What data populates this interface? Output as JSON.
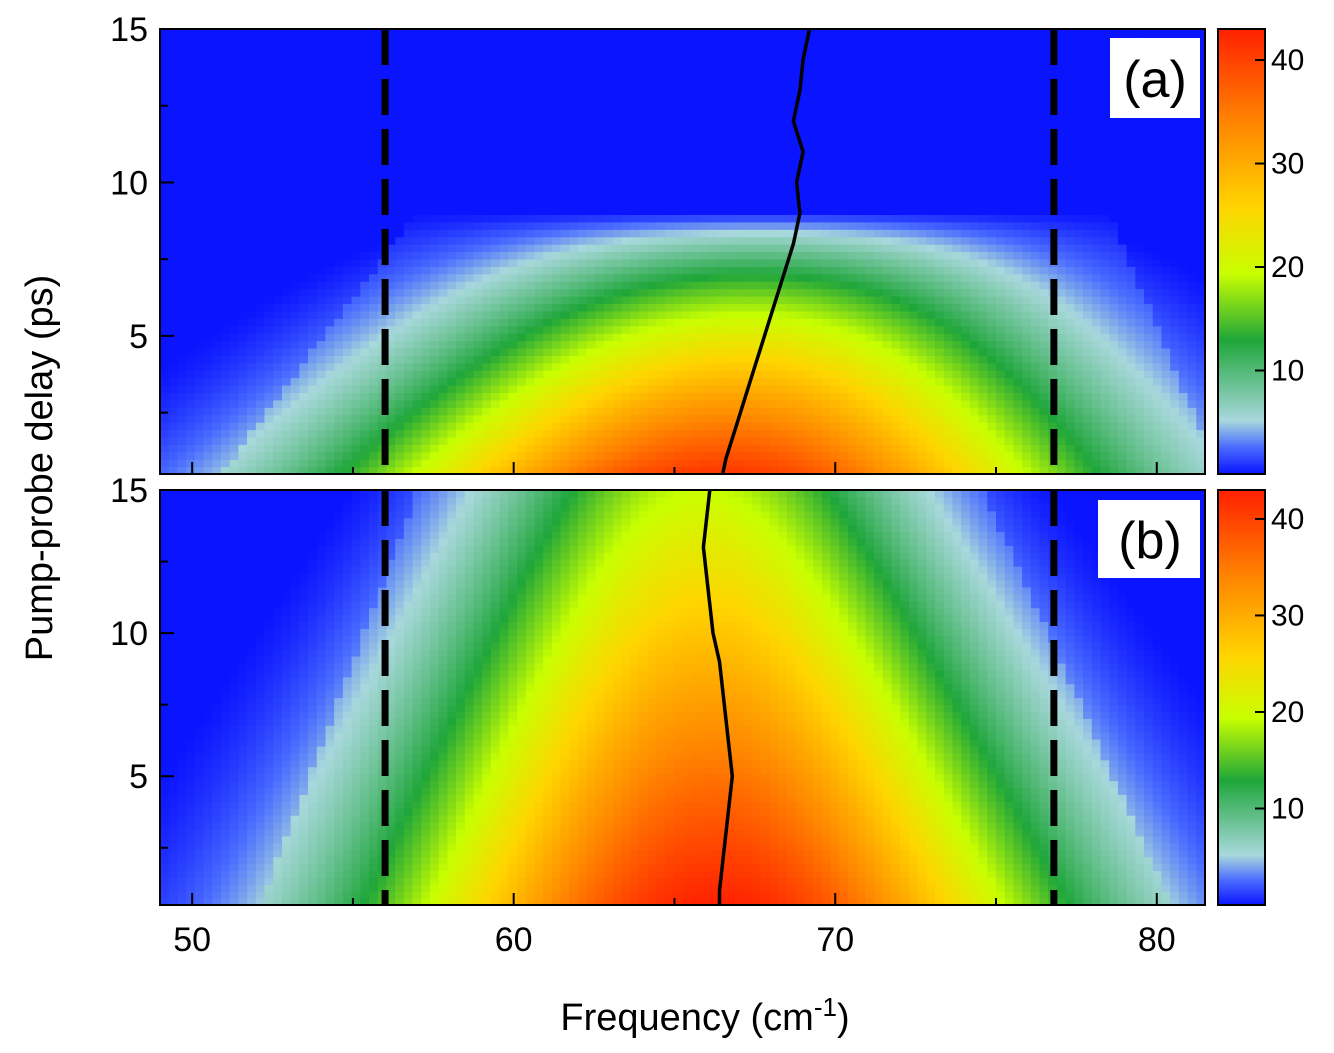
{
  "chart_data": [
    {
      "panel": "(a)",
      "type": "heatmap",
      "xlabel": "Frequency (cm-1)",
      "ylabel": "Pump-probe delay (ps)",
      "xlim": [
        49,
        81.5
      ],
      "ylim": [
        0.5,
        15
      ],
      "xticks": [
        50,
        60,
        70,
        80
      ],
      "yticks": [
        5,
        10,
        15
      ],
      "reference_lines_x": [
        56,
        76.8
      ],
      "colorbar": {
        "ticks": [
          10,
          20,
          30,
          40
        ],
        "range": [
          0,
          43
        ],
        "colors": [
          "#0a14ff",
          "#a8d8dc",
          "#1fa63a",
          "#c8ff00",
          "#ffd400",
          "#ff8a00",
          "#ff2000"
        ]
      },
      "envelope": {
        "center_start": 66.4,
        "center_end": 68.7,
        "half_width_start": 11.5,
        "half_width_end": 5.5,
        "fade_delay": 9.0
      },
      "peak_trace": {
        "delay": [
          0.5,
          1,
          2,
          3,
          4,
          5,
          6,
          7,
          8,
          9,
          10,
          11,
          12,
          13,
          14,
          15
        ],
        "frequency": [
          66.5,
          66.6,
          66.9,
          67.2,
          67.5,
          67.8,
          68.1,
          68.4,
          68.7,
          68.9,
          68.8,
          69.0,
          68.7,
          68.9,
          69.0,
          69.2
        ]
      }
    },
    {
      "panel": "(b)",
      "type": "heatmap",
      "xlabel": "Frequency (cm-1)",
      "ylabel": "Pump-probe delay (ps)",
      "xlim": [
        49,
        81.5
      ],
      "ylim": [
        0.5,
        15
      ],
      "xticks": [
        50,
        60,
        70,
        80
      ],
      "yticks": [
        5,
        10,
        15
      ],
      "reference_lines_x": [
        56,
        76.8
      ],
      "colorbar": {
        "ticks": [
          10,
          20,
          30,
          40
        ],
        "range": [
          0,
          43
        ],
        "colors": [
          "#0a14ff",
          "#a8d8dc",
          "#1fa63a",
          "#c8ff00",
          "#ffd400",
          "#ff8a00",
          "#ff2000"
        ]
      },
      "envelope": {
        "center_start": 66.3,
        "center_end": 65.8,
        "half_width_start": 10.5,
        "half_width_end": 6.5,
        "fade_delay": 16.0
      },
      "peak_trace": {
        "delay": [
          0.5,
          1,
          2,
          3,
          4,
          5,
          6,
          7,
          8,
          9,
          10,
          11,
          12,
          13,
          14,
          15
        ],
        "frequency": [
          66.4,
          66.4,
          66.5,
          66.6,
          66.7,
          66.8,
          66.7,
          66.6,
          66.5,
          66.4,
          66.2,
          66.1,
          66.0,
          65.9,
          66.0,
          66.1
        ]
      }
    }
  ],
  "labels": {
    "panel_a": "(a)",
    "panel_b": "(b)",
    "x_axis_title": "Frequency (cm",
    "x_axis_exponent": "-1",
    "x_axis_close": ")",
    "y_axis_title": "Pump-probe delay (ps)"
  }
}
